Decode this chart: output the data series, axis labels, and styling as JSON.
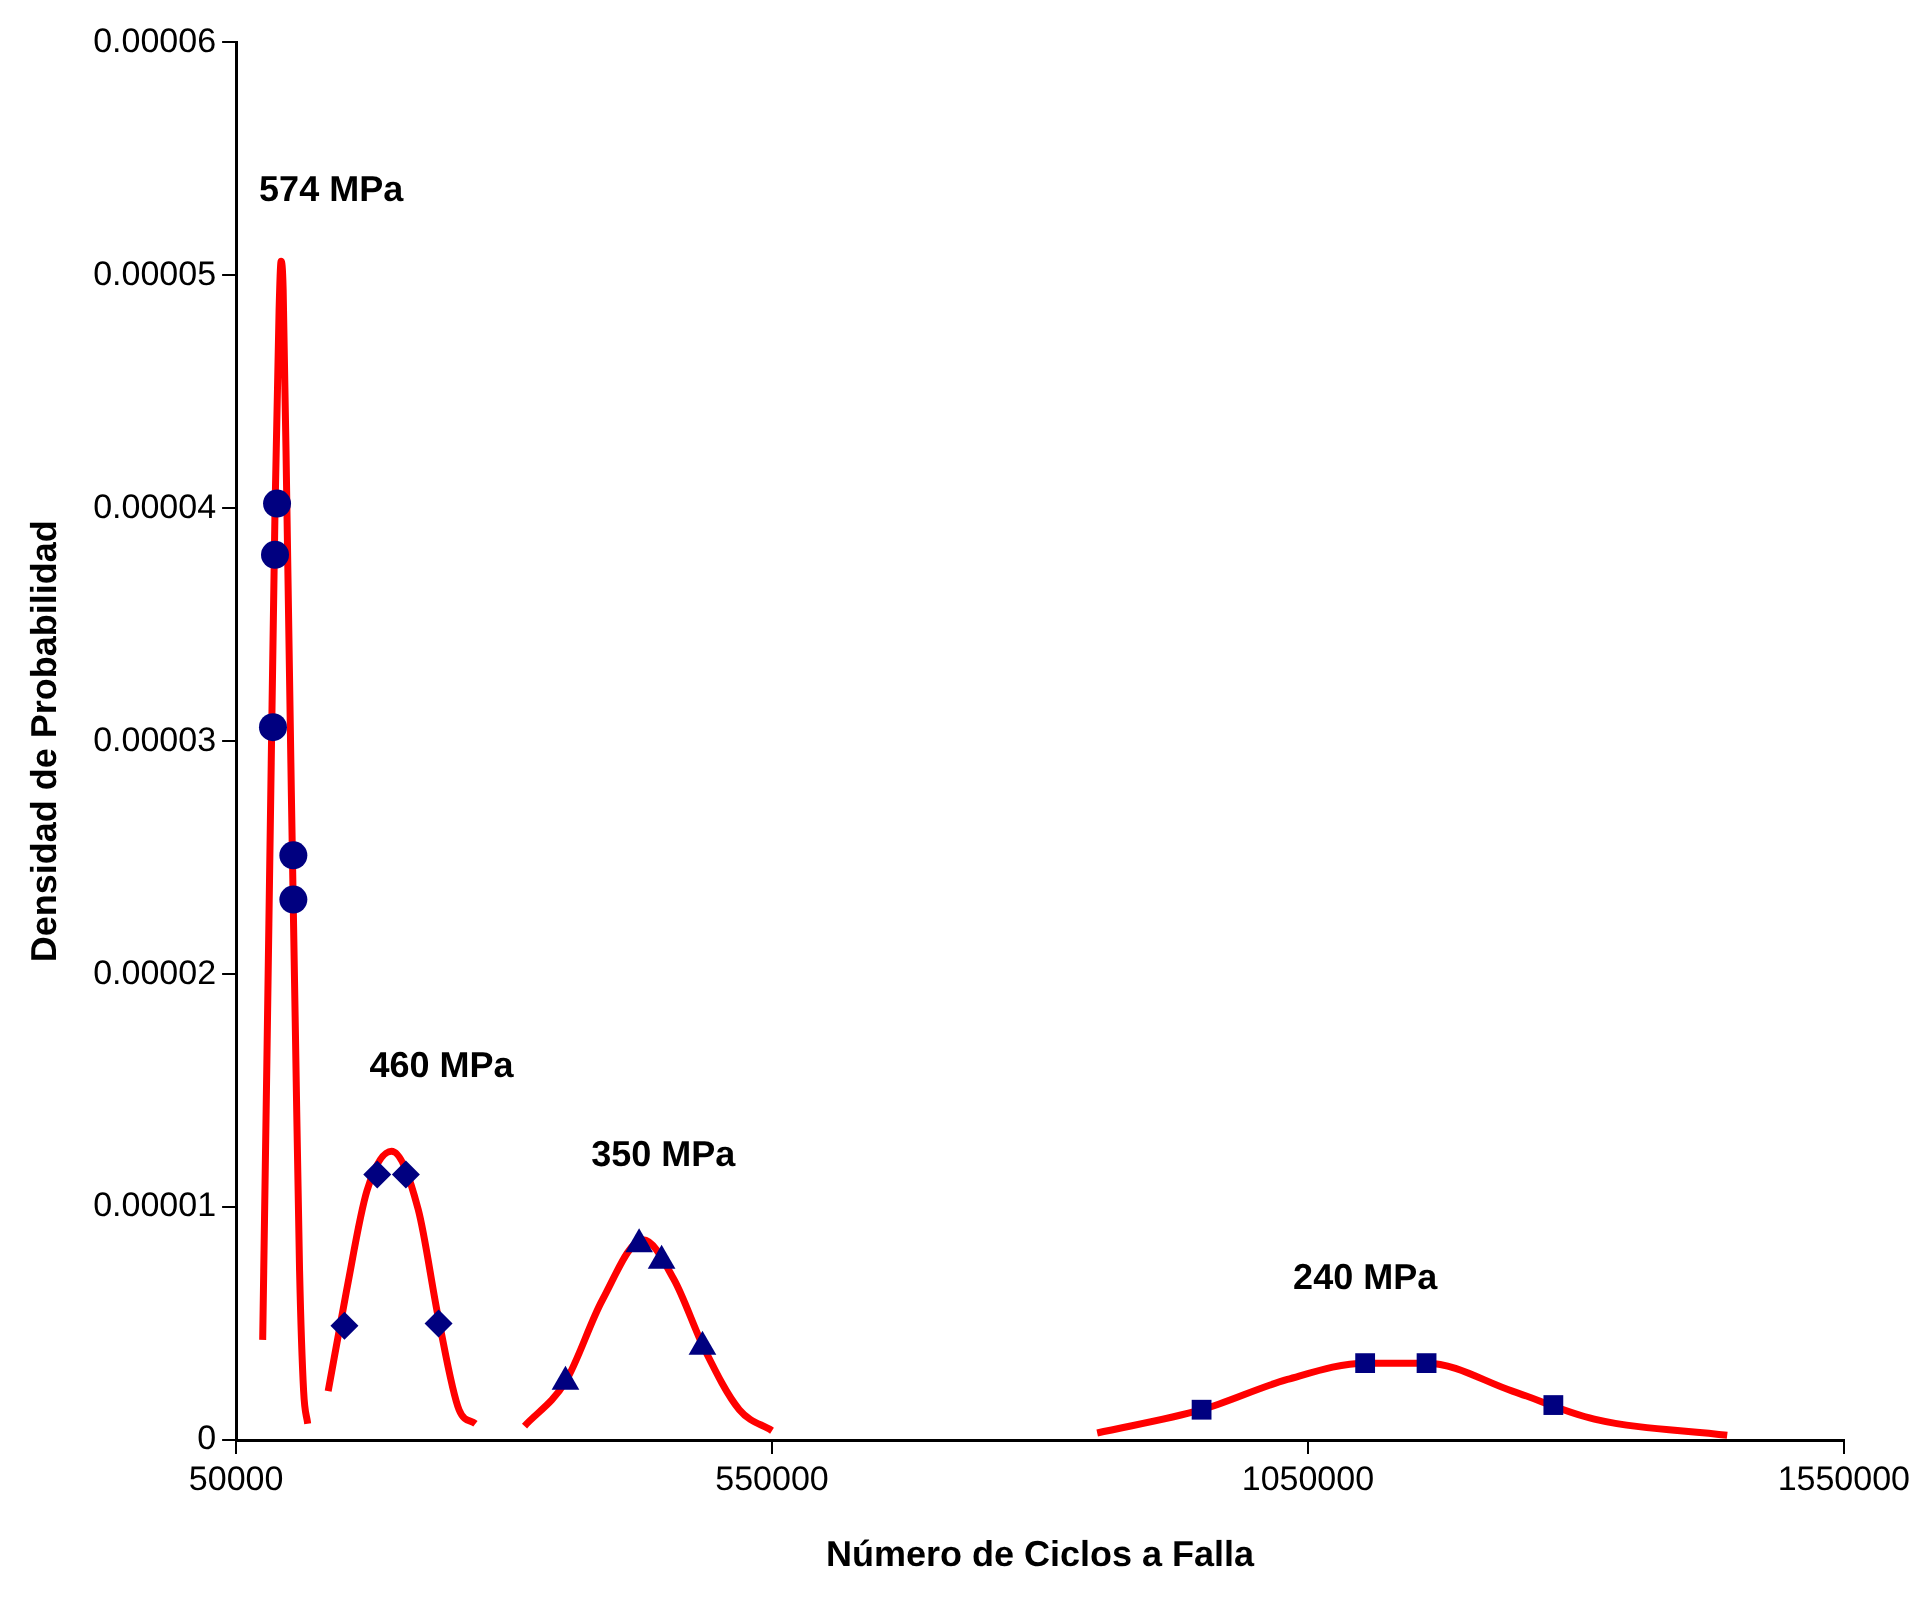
{
  "chart_data": {
    "type": "line",
    "xlabel": "Número de Ciclos a Falla",
    "ylabel": "Densidad de Probabilidad",
    "xlim": [
      50000,
      1550000
    ],
    "xticks": [
      50000,
      550000,
      1050000,
      1550000
    ],
    "ylim": [
      0,
      6e-05
    ],
    "yticks": [
      0,
      {
        "value": 1e-05,
        "label": "0.00001"
      },
      {
        "value": 2e-05,
        "label": "0.00002"
      },
      {
        "value": 3e-05,
        "label": "0.00003"
      },
      {
        "value": 4e-05,
        "label": "0.00004"
      },
      {
        "value": 5e-05,
        "label": "0.00005"
      },
      {
        "value": 6e-05,
        "label": "0.00006"
      }
    ],
    "grid": false,
    "legend": false,
    "line_style": "solid",
    "series": [
      {
        "type": "line",
        "color": "#ff0000",
        "marker": "none",
        "x": [
          74800,
          78600,
          82400,
          86300,
          90100,
          92000,
          93900,
          97700,
          101500,
          105300,
          109200,
          113000,
          116800
        ],
        "values": [
          4.3e-06,
          1.59e-05,
          2.79e-05,
          3.99e-05,
          4.85e-05,
          5.06e-05,
          4.94e-05,
          3.91e-05,
          2.79e-05,
          1.76e-05,
          7.3e-06,
          2.1e-06,
          7e-07
        ]
      },
      {
        "type": "line",
        "color": "#ff0000",
        "marker": "none",
        "x": [
          135900,
          153000,
          172100,
          195000,
          219900,
          238900,
          258000,
          273300
        ],
        "values": [
          2.1e-06,
          6.4e-06,
          1.07e-05,
          1.24e-05,
          9.9e-06,
          5.2e-06,
          1.3e-06,
          7e-07
        ]
      },
      {
        "type": "line",
        "color": "#ff0000",
        "marker": "none",
        "x": [
          319100,
          357300,
          391600,
          429800,
          458400,
          487000,
          519500,
          550000
        ],
        "values": [
          6e-07,
          2.5e-06,
          6e-06,
          8.6e-06,
          6.9e-06,
          3.9e-06,
          1.3e-06,
          4e-07
        ]
      },
      {
        "type": "line",
        "color": "#ff0000",
        "marker": "none",
        "x": [
          853400,
          950800,
          1030900,
          1103400,
          1160700,
          1240800,
          1317200,
          1441200
        ],
        "values": [
          3e-07,
          1.3e-06,
          2.6e-06,
          3.3e-06,
          3.3e-06,
          2.1e-06,
          9e-07,
          2e-07
        ]
      },
      {
        "type": "scatter",
        "color": "#000080",
        "marker": "circle",
        "x": [
          88200,
          86300,
          84400,
          103400,
          103400
        ],
        "values": [
          4.02e-05,
          3.8e-05,
          3.06e-05,
          2.51e-05,
          2.32e-05
        ]
      },
      {
        "type": "scatter",
        "color": "#000080",
        "marker": "diamond",
        "x": [
          151100,
          181700,
          208400,
          238900
        ],
        "values": [
          4.9e-06,
          1.14e-05,
          1.14e-05,
          5e-06
        ]
      },
      {
        "type": "scatter",
        "color": "#000080",
        "marker": "triangle",
        "x": [
          357300,
          426000,
          447000,
          485100
        ],
        "values": [
          2.5e-06,
          8.4e-06,
          7.7e-06,
          4e-06
        ]
      },
      {
        "type": "scatter",
        "color": "#000080",
        "marker": "square",
        "x": [
          950800,
          1103400,
          1160700,
          1279000
        ],
        "values": [
          1.3e-06,
          3.3e-06,
          3.3e-06,
          1.5e-06
        ]
      }
    ],
    "annotations": [
      "574 MPa",
      "460 MPa",
      "350 MPa",
      "240 MPa"
    ]
  }
}
